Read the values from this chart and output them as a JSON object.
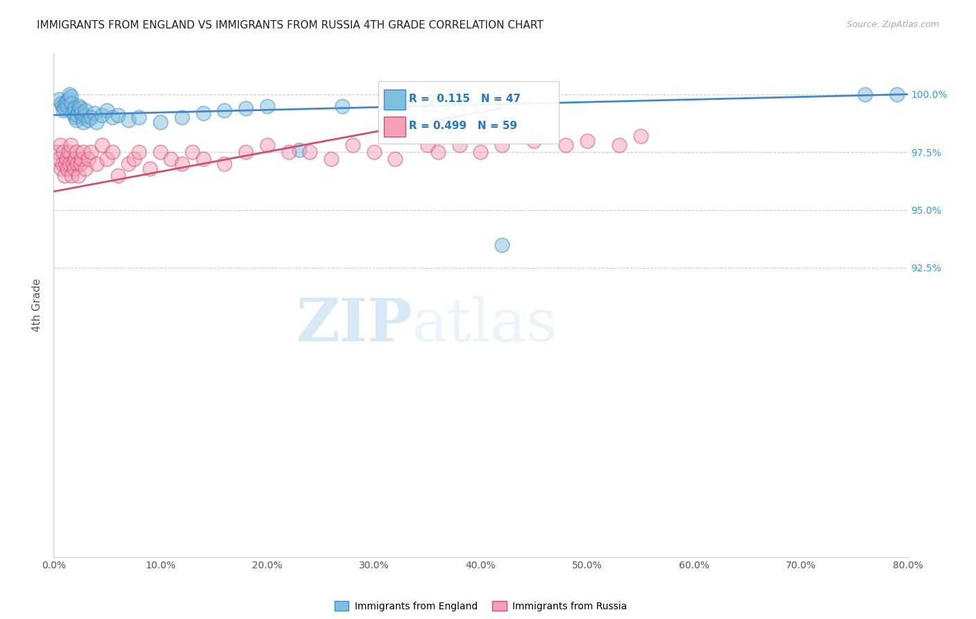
{
  "title": "IMMIGRANTS FROM ENGLAND VS IMMIGRANTS FROM RUSSIA 4TH GRADE CORRELATION CHART",
  "source": "Source: ZipAtlas.com",
  "ylabel": "4th Grade",
  "legend_labels": [
    "Immigrants from England",
    "Immigrants from Russia"
  ],
  "legend_r_england": "R =  0.115",
  "legend_n_england": "N = 47",
  "legend_r_russia": "R = 0.499",
  "legend_n_russia": "N = 59",
  "color_england": "#7fbfdf",
  "color_russia": "#f4a0b8",
  "color_england_line": "#4488cc",
  "color_russia_line": "#d05070",
  "xlim": [
    0.0,
    80.0
  ],
  "ylim": [
    80.0,
    101.8
  ],
  "yticks_right": [
    92.5,
    95.0,
    97.5,
    100.0
  ],
  "xticks": [
    0.0,
    10.0,
    20.0,
    30.0,
    40.0,
    50.0,
    60.0,
    70.0,
    80.0
  ],
  "watermark_zip": "ZIP",
  "watermark_atlas": "atlas",
  "england_x": [
    0.5,
    0.7,
    0.8,
    0.9,
    1.0,
    1.1,
    1.2,
    1.3,
    1.4,
    1.5,
    1.6,
    1.7,
    1.8,
    1.9,
    2.0,
    2.1,
    2.2,
    2.3,
    2.4,
    2.5,
    2.6,
    2.7,
    2.8,
    2.9,
    3.0,
    3.2,
    3.5,
    3.8,
    4.0,
    4.5,
    5.0,
    5.5,
    6.0,
    7.0,
    8.0,
    10.0,
    12.0,
    14.0,
    16.0,
    18.0,
    20.0,
    23.0,
    27.0,
    35.0,
    42.0,
    76.0,
    79.0
  ],
  "england_y": [
    99.8,
    99.6,
    99.5,
    99.3,
    99.4,
    99.6,
    99.7,
    99.5,
    99.8,
    100.0,
    99.9,
    99.6,
    99.2,
    99.4,
    99.0,
    98.9,
    99.1,
    99.3,
    99.5,
    99.4,
    99.2,
    99.0,
    98.8,
    99.1,
    99.3,
    98.9,
    99.0,
    99.2,
    98.8,
    99.1,
    99.3,
    99.0,
    99.1,
    98.9,
    99.0,
    98.8,
    99.0,
    99.2,
    99.3,
    99.4,
    99.5,
    97.6,
    99.5,
    99.5,
    93.5,
    100.0,
    100.0
  ],
  "russia_x": [
    0.3,
    0.5,
    0.6,
    0.7,
    0.8,
    0.9,
    1.0,
    1.1,
    1.2,
    1.3,
    1.4,
    1.5,
    1.6,
    1.7,
    1.8,
    1.9,
    2.0,
    2.1,
    2.2,
    2.3,
    2.5,
    2.6,
    2.8,
    3.0,
    3.2,
    3.5,
    4.0,
    4.5,
    5.0,
    5.5,
    6.0,
    7.0,
    7.5,
    8.0,
    9.0,
    10.0,
    11.0,
    12.0,
    13.0,
    14.0,
    16.0,
    18.0,
    20.0,
    22.0,
    24.0,
    26.0,
    28.0,
    30.0,
    32.0,
    35.0,
    36.0,
    38.0,
    40.0,
    42.0,
    45.0,
    48.0,
    50.0,
    53.0,
    55.0
  ],
  "russia_y": [
    97.5,
    97.2,
    97.8,
    96.8,
    97.0,
    97.5,
    96.5,
    97.0,
    97.2,
    96.8,
    97.5,
    97.0,
    97.8,
    96.5,
    97.0,
    96.8,
    97.2,
    97.5,
    97.0,
    96.5,
    97.0,
    97.2,
    97.5,
    96.8,
    97.2,
    97.5,
    97.0,
    97.8,
    97.2,
    97.5,
    96.5,
    97.0,
    97.2,
    97.5,
    96.8,
    97.5,
    97.2,
    97.0,
    97.5,
    97.2,
    97.0,
    97.5,
    97.8,
    97.5,
    97.5,
    97.2,
    97.8,
    97.5,
    97.2,
    97.8,
    97.5,
    97.8,
    97.5,
    97.8,
    98.0,
    97.8,
    98.0,
    97.8,
    98.2
  ]
}
